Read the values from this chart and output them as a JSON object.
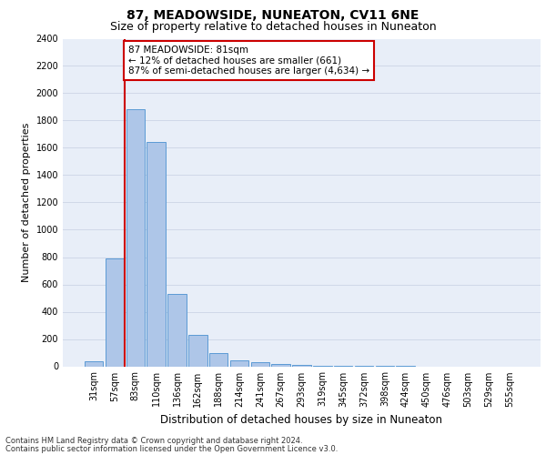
{
  "title1": "87, MEADOWSIDE, NUNEATON, CV11 6NE",
  "title2": "Size of property relative to detached houses in Nuneaton",
  "xlabel": "Distribution of detached houses by size in Nuneaton",
  "ylabel": "Number of detached properties",
  "footer1": "Contains HM Land Registry data © Crown copyright and database right 2024.",
  "footer2": "Contains public sector information licensed under the Open Government Licence v3.0.",
  "annotation_title": "87 MEADOWSIDE: 81sqm",
  "annotation_line1": "← 12% of detached houses are smaller (661)",
  "annotation_line2": "87% of semi-detached houses are larger (4,634) →",
  "bar_categories": [
    "31sqm",
    "57sqm",
    "83sqm",
    "110sqm",
    "136sqm",
    "162sqm",
    "188sqm",
    "214sqm",
    "241sqm",
    "267sqm",
    "293sqm",
    "319sqm",
    "345sqm",
    "372sqm",
    "398sqm",
    "424sqm",
    "450sqm",
    "476sqm",
    "503sqm",
    "529sqm",
    "555sqm"
  ],
  "bar_values": [
    40,
    790,
    1880,
    1640,
    530,
    230,
    100,
    45,
    30,
    20,
    10,
    5,
    3,
    2,
    1,
    1,
    0,
    0,
    0,
    0,
    0
  ],
  "bar_color": "#aec6e8",
  "bar_edge_color": "#5b9bd5",
  "marker_color": "#cc0000",
  "ylim": [
    0,
    2400
  ],
  "yticks": [
    0,
    200,
    400,
    600,
    800,
    1000,
    1200,
    1400,
    1600,
    1800,
    2000,
    2200,
    2400
  ],
  "grid_color": "#d0d8e8",
  "bg_color": "#e8eef8",
  "title1_fontsize": 10,
  "title2_fontsize": 9,
  "ylabel_fontsize": 8,
  "xlabel_fontsize": 8.5,
  "footer_fontsize": 6,
  "tick_fontsize": 7,
  "annot_fontsize": 7.5
}
